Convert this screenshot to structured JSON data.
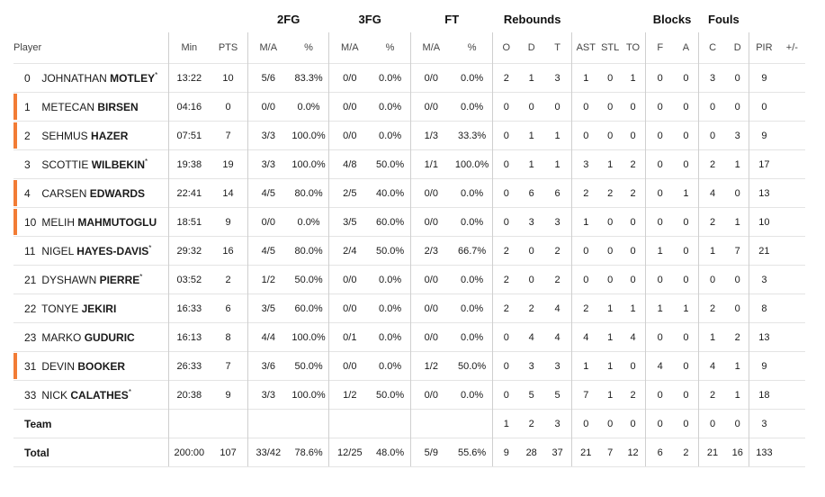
{
  "group_headers": {
    "fg2": "2FG",
    "fg3": "3FG",
    "ft": "FT",
    "reb": "Rebounds",
    "blk": "Blocks",
    "fouls": "Fouls"
  },
  "columns": {
    "player": "Player",
    "min": "Min",
    "pts": "PTS",
    "ma2": "M/A",
    "pct2": "%",
    "ma3": "M/A",
    "pct3": "%",
    "maft": "M/A",
    "pctft": "%",
    "o": "O",
    "d": "D",
    "t": "T",
    "ast": "AST",
    "stl": "STL",
    "to": "TO",
    "bf": "F",
    "ba": "A",
    "fc": "C",
    "fd": "D",
    "pir": "PIR",
    "pm": "+/-"
  },
  "players": [
    {
      "num": "0",
      "first": "JOHNATHAN",
      "last": "MOTLEY",
      "star": "*",
      "bar": false,
      "stats": [
        "13:22",
        "10",
        "5/6",
        "83.3%",
        "0/0",
        "0.0%",
        "0/0",
        "0.0%",
        "2",
        "1",
        "3",
        "1",
        "0",
        "1",
        "0",
        "0",
        "3",
        "0",
        "9",
        ""
      ]
    },
    {
      "num": "1",
      "first": "METECAN",
      "last": "BIRSEN",
      "star": "",
      "bar": true,
      "stats": [
        "04:16",
        "0",
        "0/0",
        "0.0%",
        "0/0",
        "0.0%",
        "0/0",
        "0.0%",
        "0",
        "0",
        "0",
        "0",
        "0",
        "0",
        "0",
        "0",
        "0",
        "0",
        "0",
        ""
      ]
    },
    {
      "num": "2",
      "first": "SEHMUS",
      "last": "HAZER",
      "star": "",
      "bar": true,
      "stats": [
        "07:51",
        "7",
        "3/3",
        "100.0%",
        "0/0",
        "0.0%",
        "1/3",
        "33.3%",
        "0",
        "1",
        "1",
        "0",
        "0",
        "0",
        "0",
        "0",
        "0",
        "3",
        "9",
        ""
      ]
    },
    {
      "num": "3",
      "first": "SCOTTIE",
      "last": "WILBEKIN",
      "star": "*",
      "bar": false,
      "stats": [
        "19:38",
        "19",
        "3/3",
        "100.0%",
        "4/8",
        "50.0%",
        "1/1",
        "100.0%",
        "0",
        "1",
        "1",
        "3",
        "1",
        "2",
        "0",
        "0",
        "2",
        "1",
        "17",
        ""
      ]
    },
    {
      "num": "4",
      "first": "CARSEN",
      "last": "EDWARDS",
      "star": "",
      "bar": true,
      "stats": [
        "22:41",
        "14",
        "4/5",
        "80.0%",
        "2/5",
        "40.0%",
        "0/0",
        "0.0%",
        "0",
        "6",
        "6",
        "2",
        "2",
        "2",
        "0",
        "1",
        "4",
        "0",
        "13",
        ""
      ]
    },
    {
      "num": "10",
      "first": "MELIH",
      "last": "MAHMUTOGLU",
      "star": "",
      "bar": true,
      "stats": [
        "18:51",
        "9",
        "0/0",
        "0.0%",
        "3/5",
        "60.0%",
        "0/0",
        "0.0%",
        "0",
        "3",
        "3",
        "1",
        "0",
        "0",
        "0",
        "0",
        "2",
        "1",
        "10",
        ""
      ]
    },
    {
      "num": "11",
      "first": "NIGEL",
      "last": "HAYES-DAVIS",
      "star": "*",
      "bar": false,
      "stats": [
        "29:32",
        "16",
        "4/5",
        "80.0%",
        "2/4",
        "50.0%",
        "2/3",
        "66.7%",
        "2",
        "0",
        "2",
        "0",
        "0",
        "0",
        "1",
        "0",
        "1",
        "7",
        "21",
        ""
      ]
    },
    {
      "num": "21",
      "first": "DYSHAWN",
      "last": "PIERRE",
      "star": "*",
      "bar": false,
      "stats": [
        "03:52",
        "2",
        "1/2",
        "50.0%",
        "0/0",
        "0.0%",
        "0/0",
        "0.0%",
        "2",
        "0",
        "2",
        "0",
        "0",
        "0",
        "0",
        "0",
        "0",
        "0",
        "3",
        ""
      ]
    },
    {
      "num": "22",
      "first": "TONYE",
      "last": "JEKIRI",
      "star": "",
      "bar": false,
      "stats": [
        "16:33",
        "6",
        "3/5",
        "60.0%",
        "0/0",
        "0.0%",
        "0/0",
        "0.0%",
        "2",
        "2",
        "4",
        "2",
        "1",
        "1",
        "1",
        "1",
        "2",
        "0",
        "8",
        ""
      ]
    },
    {
      "num": "23",
      "first": "MARKO",
      "last": "GUDURIC",
      "star": "",
      "bar": false,
      "stats": [
        "16:13",
        "8",
        "4/4",
        "100.0%",
        "0/1",
        "0.0%",
        "0/0",
        "0.0%",
        "0",
        "4",
        "4",
        "4",
        "1",
        "4",
        "0",
        "0",
        "1",
        "2",
        "13",
        ""
      ]
    },
    {
      "num": "31",
      "first": "DEVIN",
      "last": "BOOKER",
      "star": "",
      "bar": true,
      "stats": [
        "26:33",
        "7",
        "3/6",
        "50.0%",
        "0/0",
        "0.0%",
        "1/2",
        "50.0%",
        "0",
        "3",
        "3",
        "1",
        "1",
        "0",
        "4",
        "0",
        "4",
        "1",
        "9",
        ""
      ]
    },
    {
      "num": "33",
      "first": "NICK",
      "last": "CALATHES",
      "star": "*",
      "bar": false,
      "stats": [
        "20:38",
        "9",
        "3/3",
        "100.0%",
        "1/2",
        "50.0%",
        "0/0",
        "0.0%",
        "0",
        "5",
        "5",
        "7",
        "1",
        "2",
        "0",
        "0",
        "2",
        "1",
        "18",
        ""
      ]
    }
  ],
  "team": {
    "label": "Team",
    "stats": [
      "",
      "",
      "",
      "",
      "",
      "",
      "",
      "",
      "1",
      "2",
      "3",
      "0",
      "0",
      "0",
      "0",
      "0",
      "0",
      "0",
      "3",
      ""
    ]
  },
  "total": {
    "label": "Total",
    "stats": [
      "200:00",
      "107",
      "33/42",
      "78.6%",
      "12/25",
      "48.0%",
      "5/9",
      "55.6%",
      "9",
      "28",
      "37",
      "21",
      "7",
      "12",
      "6",
      "2",
      "21",
      "16",
      "133",
      ""
    ]
  }
}
